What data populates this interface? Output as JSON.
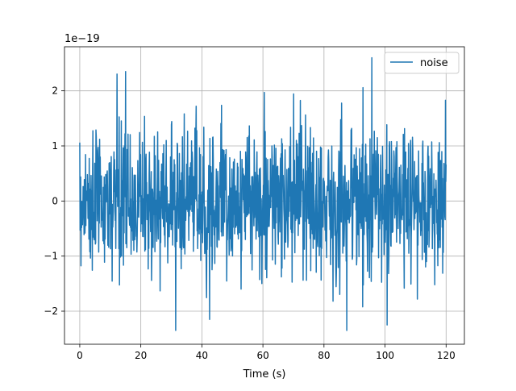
{
  "chart_data": {
    "type": "line",
    "xlabel": "Time (s)",
    "ylabel": "",
    "scale_note": "1e−19",
    "xlim": [
      -5,
      126
    ],
    "ylim": [
      -2.6,
      2.8
    ],
    "xticks": [
      0,
      20,
      40,
      60,
      80,
      100,
      120
    ],
    "xtick_labels": [
      "0",
      "20",
      "40",
      "60",
      "80",
      "100",
      "120"
    ],
    "yticks": [
      -2,
      -1,
      0,
      1,
      2
    ],
    "ytick_labels": [
      "−2",
      "−1",
      "0",
      "1",
      "2"
    ],
    "grid": true,
    "legend_position": "top-right",
    "series": [
      {
        "name": "noise",
        "color": "#1f77b4",
        "x_start": 0,
        "x_end": 120,
        "sample_count": 1200,
        "y_min": -2.35,
        "y_max": 2.6,
        "y_std": 0.65
      }
    ]
  }
}
